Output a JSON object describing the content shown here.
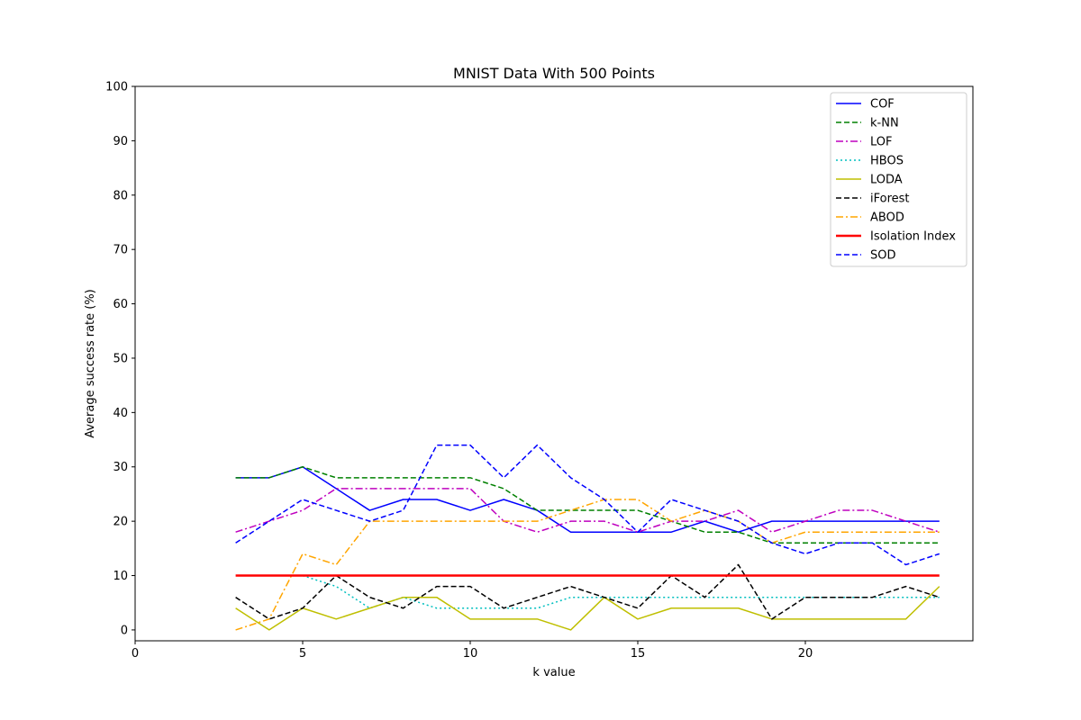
{
  "chart_data": {
    "type": "line",
    "title": "MNIST Data With 500 Points",
    "xlabel": "k value",
    "ylabel": "Average success rate (%)",
    "xlim": [
      0,
      25
    ],
    "ylim": [
      -2,
      100
    ],
    "xticks": [
      0,
      5,
      10,
      15,
      20
    ],
    "yticks": [
      0,
      10,
      20,
      30,
      40,
      50,
      60,
      70,
      80,
      90,
      100
    ],
    "grid": false,
    "legend_position": "top-right",
    "x": [
      3,
      4,
      5,
      6,
      7,
      8,
      9,
      10,
      11,
      12,
      13,
      14,
      15,
      16,
      17,
      18,
      19,
      20,
      21,
      22,
      23,
      24
    ],
    "series": [
      {
        "name": "COF",
        "color": "#0000ff",
        "dash": "solid",
        "width": 1.5,
        "values": [
          28,
          28,
          30,
          26,
          22,
          24,
          24,
          22,
          24,
          22,
          18,
          18,
          18,
          18,
          20,
          18,
          20,
          20,
          20,
          20,
          20,
          20
        ]
      },
      {
        "name": "k-NN",
        "color": "#008000",
        "dash": "dashed",
        "width": 1.5,
        "values": [
          28,
          28,
          30,
          28,
          28,
          28,
          28,
          28,
          26,
          22,
          22,
          22,
          22,
          20,
          18,
          18,
          16,
          16,
          16,
          16,
          16,
          16
        ]
      },
      {
        "name": "LOF",
        "color": "#bf00bf",
        "dash": "dashdot",
        "width": 1.5,
        "values": [
          18,
          20,
          22,
          26,
          26,
          26,
          26,
          26,
          20,
          18,
          20,
          20,
          18,
          20,
          20,
          22,
          18,
          20,
          22,
          22,
          20,
          18
        ]
      },
      {
        "name": "HBOS",
        "color": "#00bfbf",
        "dash": "dotted",
        "width": 1.5,
        "values": [
          null,
          null,
          10,
          8,
          4,
          6,
          4,
          4,
          4,
          4,
          6,
          6,
          6,
          6,
          6,
          6,
          6,
          6,
          6,
          6,
          6,
          6
        ]
      },
      {
        "name": "LODA",
        "color": "#bfbf00",
        "dash": "solid",
        "width": 1.5,
        "values": [
          4,
          0,
          4,
          2,
          4,
          6,
          6,
          2,
          2,
          2,
          0,
          6,
          2,
          4,
          4,
          4,
          2,
          2,
          2,
          2,
          2,
          8
        ]
      },
      {
        "name": "iForest",
        "color": "#000000",
        "dash": "dashed",
        "width": 1.5,
        "values": [
          6,
          2,
          4,
          10,
          6,
          4,
          8,
          8,
          4,
          6,
          8,
          6,
          4,
          10,
          6,
          12,
          2,
          6,
          6,
          6,
          8,
          6
        ]
      },
      {
        "name": "ABOD",
        "color": "#ffa500",
        "dash": "dashdot",
        "width": 1.5,
        "values": [
          0,
          2,
          14,
          12,
          20,
          20,
          20,
          20,
          20,
          20,
          22,
          24,
          24,
          20,
          22,
          20,
          16,
          18,
          18,
          18,
          18,
          18
        ]
      },
      {
        "name": "Isolation Index",
        "color": "#ff0000",
        "dash": "solid",
        "width": 2.5,
        "values": [
          10,
          10,
          10,
          10,
          10,
          10,
          10,
          10,
          10,
          10,
          10,
          10,
          10,
          10,
          10,
          10,
          10,
          10,
          10,
          10,
          10,
          10
        ]
      },
      {
        "name": "SOD",
        "color": "#0000ff",
        "dash": "dashed",
        "width": 1.5,
        "values": [
          16,
          20,
          24,
          22,
          20,
          22,
          34,
          34,
          28,
          34,
          28,
          24,
          18,
          24,
          22,
          20,
          16,
          14,
          16,
          16,
          12,
          14
        ]
      }
    ]
  }
}
